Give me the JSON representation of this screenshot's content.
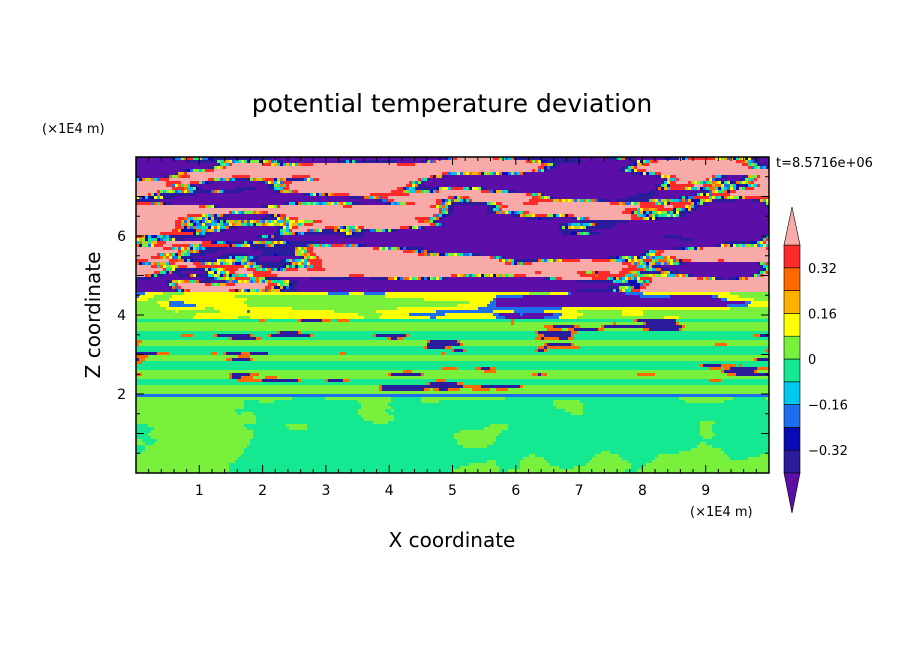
{
  "chart_data": {
    "type": "heatmap",
    "title": "potential temperature deviation",
    "xlabel": "X coordinate",
    "ylabel": "Z coordinate",
    "x_unit": "(×1E4 m)",
    "y_unit": "(×1E4 m)",
    "time_label": "t=8.5716e+06",
    "xlim": [
      0,
      10
    ],
    "ylim": [
      0,
      8
    ],
    "x_ticks": [
      1,
      2,
      3,
      4,
      5,
      6,
      7,
      8,
      9
    ],
    "y_ticks": [
      2,
      4,
      6
    ],
    "colorbar": {
      "levels": [
        -0.4,
        -0.32,
        -0.24,
        -0.16,
        -0.08,
        0,
        0.08,
        0.16,
        0.24,
        0.32,
        0.4
      ],
      "labels": [
        {
          "value": 0.32,
          "text": "0.32"
        },
        {
          "value": 0.16,
          "text": "0.16"
        },
        {
          "value": 0,
          "text": "0"
        },
        {
          "value": -0.16,
          "text": "−0.16"
        },
        {
          "value": -0.32,
          "text": "−0.32"
        }
      ],
      "colors": [
        "#5b0fa8",
        "#2a1c9a",
        "#0a0ab4",
        "#1e6ef0",
        "#00c8f0",
        "#14e890",
        "#78f03c",
        "#ffff00",
        "#ffb000",
        "#ff6a00",
        "#ff2a2a",
        "#f8aaa8"
      ],
      "extend": "both"
    },
    "field_description": "layered field"
  }
}
